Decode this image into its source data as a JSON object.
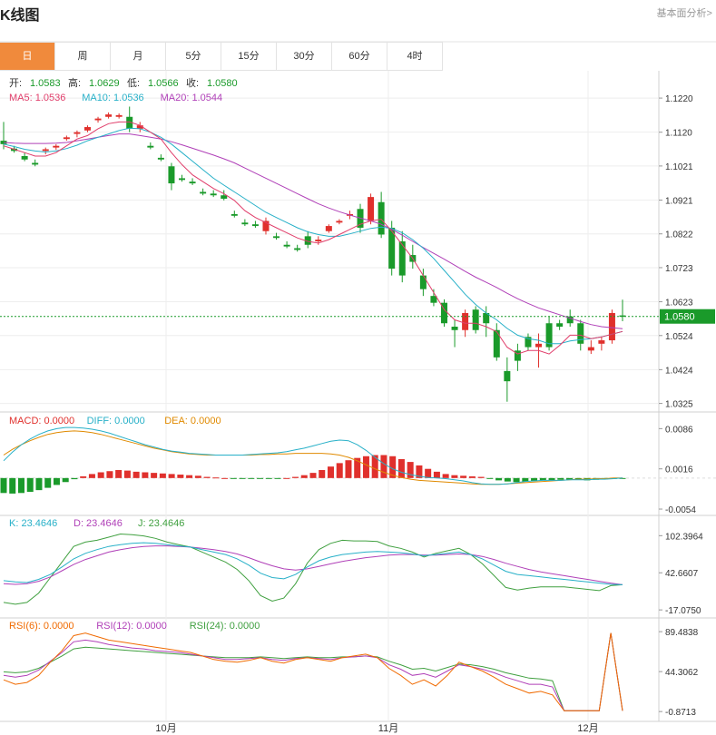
{
  "header": {
    "title": "K线图",
    "link_label": "基本面分析>"
  },
  "tabs": [
    {
      "label": "日",
      "active": true
    },
    {
      "label": "周"
    },
    {
      "label": "月"
    },
    {
      "label": "5分"
    },
    {
      "label": "15分"
    },
    {
      "label": "30分"
    },
    {
      "label": "60分"
    },
    {
      "label": "4时"
    }
  ],
  "ohlc_info": [
    {
      "label": "开:",
      "value": "1.0583"
    },
    {
      "label": "高:",
      "value": "1.0629"
    },
    {
      "label": "低:",
      "value": "1.0566"
    },
    {
      "label": "收:",
      "value": "1.0580"
    }
  ],
  "ma_info": [
    {
      "label": "MA5: 1.0536",
      "color": "#e03d6a"
    },
    {
      "label": "MA10: 1.0536",
      "color": "#27b0c8"
    },
    {
      "label": "MA20: 1.0544",
      "color": "#b040b8"
    }
  ],
  "macd_info": [
    {
      "label": "MACD: 0.0000",
      "color": "#e0302c"
    },
    {
      "label": "DIFF: 0.0000",
      "color": "#27b0c8"
    },
    {
      "label": "DEA: 0.0000",
      "color": "#e08a00"
    }
  ],
  "kdj_info": [
    {
      "label": "K: 23.4646",
      "color": "#27b0c8"
    },
    {
      "label": "D: 23.4646",
      "color": "#b040b8"
    },
    {
      "label": "J: 23.4646",
      "color": "#40a040"
    }
  ],
  "rsi_info": [
    {
      "label": "RSI(6): 0.0000",
      "color": "#f06a00"
    },
    {
      "label": "RSI(12): 0.0000",
      "color": "#b040b8"
    },
    {
      "label": "RSI(24): 0.0000",
      "color": "#40a040"
    }
  ],
  "colors": {
    "up": "#e0302c",
    "down": "#1a9a2a",
    "grid": "#eeeeee",
    "accent": "#f08a3c"
  },
  "chart_data": [
    {
      "type": "candlestick",
      "title": "K线图",
      "x_labels": [
        "10月",
        "11月",
        "12月"
      ],
      "y_ticks": [
        1.122,
        1.112,
        1.1021,
        1.0921,
        1.0822,
        1.0723,
        1.0623,
        1.0524,
        1.0424,
        1.0325
      ],
      "ylim": [
        1.03,
        1.13
      ],
      "last_price_label": "1.0580",
      "last_price": 1.058,
      "candles": [
        [
          1.1095,
          1.115,
          1.107,
          1.1085
        ],
        [
          1.1072,
          1.108,
          1.106,
          1.1065
        ],
        [
          1.105,
          1.106,
          1.1035,
          1.104
        ],
        [
          1.103,
          1.104,
          1.102,
          1.1025
        ],
        [
          1.1065,
          1.1075,
          1.1055,
          1.107
        ],
        [
          1.1075,
          1.1085,
          1.1068,
          1.108
        ],
        [
          1.11,
          1.111,
          1.1095,
          1.1105
        ],
        [
          1.1115,
          1.1125,
          1.1105,
          1.112
        ],
        [
          1.1125,
          1.114,
          1.112,
          1.1135
        ],
        [
          1.1155,
          1.1165,
          1.1148,
          1.116
        ],
        [
          1.1165,
          1.1178,
          1.116,
          1.1172
        ],
        [
          1.1165,
          1.1175,
          1.116,
          1.117
        ],
        [
          1.1165,
          1.1195,
          1.112,
          1.113
        ],
        [
          1.113,
          1.115,
          1.112,
          1.114
        ],
        [
          1.108,
          1.109,
          1.107,
          1.1075
        ],
        [
          1.1045,
          1.1055,
          1.1035,
          1.104
        ],
        [
          1.102,
          1.103,
          1.095,
          1.097
        ],
        [
          1.0985,
          1.0995,
          1.0975,
          1.098
        ],
        [
          1.0975,
          1.0985,
          1.0965,
          1.097
        ],
        [
          1.0945,
          1.0955,
          1.0935,
          1.094
        ],
        [
          1.094,
          1.095,
          1.093,
          1.0935
        ],
        [
          1.0935,
          1.095,
          1.092,
          1.0925
        ],
        [
          1.088,
          1.089,
          1.087,
          1.0875
        ],
        [
          1.0855,
          1.0865,
          1.0845,
          1.085
        ],
        [
          1.085,
          1.086,
          1.084,
          1.0845
        ],
        [
          1.083,
          1.087,
          1.082,
          1.086
        ],
        [
          1.0815,
          1.0825,
          1.0805,
          1.081
        ],
        [
          1.079,
          1.08,
          1.078,
          1.0785
        ],
        [
          1.078,
          1.079,
          1.077,
          1.0775
        ],
        [
          1.0815,
          1.083,
          1.078,
          1.079
        ],
        [
          1.08,
          1.0815,
          1.079,
          1.0805
        ],
        [
          1.083,
          1.085,
          1.0825,
          1.0845
        ],
        [
          1.0855,
          1.0865,
          1.085,
          1.086
        ],
        [
          1.0875,
          1.089,
          1.0865,
          1.088
        ],
        [
          1.0895,
          1.091,
          1.0825,
          1.084
        ],
        [
          1.086,
          1.094,
          1.085,
          1.093
        ],
        [
          1.0915,
          1.0945,
          1.081,
          1.082
        ],
        [
          1.084,
          1.086,
          1.07,
          1.072
        ],
        [
          1.08,
          1.083,
          1.068,
          1.07
        ],
        [
          1.076,
          1.079,
          1.072,
          1.074
        ],
        [
          1.07,
          1.072,
          1.064,
          1.066
        ],
        [
          1.064,
          1.066,
          1.061,
          1.062
        ],
        [
          1.062,
          1.063,
          1.055,
          1.056
        ],
        [
          1.055,
          1.057,
          1.049,
          1.054
        ],
        [
          1.054,
          1.06,
          1.052,
          1.059
        ],
        [
          1.06,
          1.061,
          1.053,
          1.054
        ],
        [
          1.059,
          1.061,
          1.052,
          1.056
        ],
        [
          1.054,
          1.056,
          1.045,
          1.046
        ],
        [
          1.042,
          1.046,
          1.033,
          1.039
        ],
        [
          1.048,
          1.05,
          1.042,
          1.045
        ],
        [
          1.052,
          1.053,
          1.048,
          1.049
        ],
        [
          1.049,
          1.053,
          1.043,
          1.05
        ],
        [
          1.056,
          1.058,
          1.048,
          1.049
        ],
        [
          1.056,
          1.057,
          1.054,
          1.055
        ],
        [
          1.058,
          1.06,
          1.055,
          1.056
        ],
        [
          1.056,
          1.057,
          1.048,
          1.05
        ],
        [
          1.048,
          1.051,
          1.047,
          1.049
        ],
        [
          1.05,
          1.052,
          1.048,
          1.051
        ],
        [
          1.051,
          1.06,
          1.05,
          1.059
        ],
        [
          1.0583,
          1.0629,
          1.0566,
          1.058
        ]
      ],
      "ma5": [
        1.108,
        1.107,
        1.106,
        1.105,
        1.105,
        1.106,
        1.108,
        1.11,
        1.111,
        1.113,
        1.1145,
        1.115,
        1.115,
        1.114,
        1.112,
        1.11,
        1.106,
        1.1025,
        1.0995,
        1.0975,
        1.0955,
        1.094,
        1.092,
        1.089,
        1.087,
        1.0855,
        1.084,
        1.0825,
        1.081,
        1.08,
        1.0795,
        1.0805,
        1.082,
        1.0835,
        1.085,
        1.086,
        1.0865,
        1.083,
        1.079,
        1.075,
        1.07,
        1.065,
        1.06,
        1.057,
        1.056,
        1.056,
        1.055,
        1.0535,
        1.049,
        1.047,
        1.048,
        1.048,
        1.047,
        1.0495,
        1.0525,
        1.0525,
        1.0515,
        1.052,
        1.0528,
        1.0536
      ],
      "ma10": [
        1.1085,
        1.1078,
        1.107,
        1.1065,
        1.1062,
        1.1065,
        1.1072,
        1.1082,
        1.1095,
        1.1105,
        1.1115,
        1.1125,
        1.1132,
        1.113,
        1.112,
        1.1105,
        1.1085,
        1.106,
        1.1035,
        1.101,
        1.0985,
        1.0965,
        1.0945,
        1.0925,
        1.0905,
        1.0885,
        1.087,
        1.0855,
        1.084,
        1.0828,
        1.082,
        1.0815,
        1.0815,
        1.0822,
        1.083,
        1.0838,
        1.0842,
        1.0838,
        1.0825,
        1.0805,
        1.078,
        1.075,
        1.0715,
        1.068,
        1.0645,
        1.0615,
        1.059,
        1.057,
        1.0545,
        1.0525,
        1.0515,
        1.051,
        1.05,
        1.05,
        1.0508,
        1.0512,
        1.0515,
        1.052,
        1.0528,
        1.0536
      ],
      "ma20": [
        1.109,
        1.1088,
        1.1087,
        1.1087,
        1.1087,
        1.1088,
        1.109,
        1.1095,
        1.11,
        1.1105,
        1.111,
        1.1115,
        1.1115,
        1.111,
        1.1105,
        1.11,
        1.1092,
        1.1083,
        1.1073,
        1.1063,
        1.1053,
        1.1042,
        1.103,
        1.1015,
        1.1,
        1.0985,
        1.097,
        1.0955,
        1.094,
        1.0925,
        1.091,
        1.0898,
        1.0887,
        1.0877,
        1.0868,
        1.086,
        1.085,
        1.0835,
        1.0818,
        1.08,
        1.0782,
        1.0765,
        1.0748,
        1.073,
        1.0712,
        1.0695,
        1.068,
        1.0665,
        1.0648,
        1.0632,
        1.0618,
        1.0605,
        1.0595,
        1.0585,
        1.0575,
        1.0565,
        1.0556,
        1.055,
        1.0547,
        1.0544
      ]
    },
    {
      "type": "macd",
      "y_ticks": [
        0.0086,
        0.0016,
        -0.0054
      ],
      "ylim": [
        -0.0065,
        0.0115
      ],
      "hist": [
        -0.0026,
        -0.0027,
        -0.0026,
        -0.0024,
        -0.0021,
        -0.0017,
        -0.0012,
        -0.0007,
        -0.0002,
        0.0003,
        0.0007,
        0.001,
        0.0012,
        0.0014,
        0.0013,
        0.0011,
        0.001,
        0.0009,
        0.0008,
        0.0007,
        0.0006,
        0.0005,
        0.0004,
        0.0002,
        0.0001,
        0.0,
        -0.0001,
        -0.0001,
        -0.0001,
        -0.0001,
        -0.0001,
        -0.0001,
        0.0,
        0.0002,
        0.0005,
        0.0009,
        0.0014,
        0.002,
        0.0026,
        0.0031,
        0.0035,
        0.0038,
        0.004,
        0.004,
        0.0038,
        0.0033,
        0.0028,
        0.0022,
        0.0016,
        0.0011,
        0.0007,
        0.0005,
        0.0004,
        0.0003,
        0.0002,
        -0.0001,
        -0.0004,
        -0.0006,
        -0.0007,
        -0.0006,
        -0.0005,
        -0.0004,
        -0.0004,
        -0.0003,
        -0.0003,
        -0.0002,
        -0.0004,
        -0.0003,
        -0.0002,
        -0.0001,
        -0.0001
      ],
      "diff": [
        0.003,
        0.0045,
        0.0058,
        0.0068,
        0.0076,
        0.0082,
        0.0086,
        0.0088,
        0.0088,
        0.0087,
        0.0085,
        0.0082,
        0.0078,
        0.0073,
        0.0068,
        0.0063,
        0.0058,
        0.0054,
        0.005,
        0.0047,
        0.0045,
        0.0043,
        0.0042,
        0.0041,
        0.004,
        0.004,
        0.004,
        0.004,
        0.0041,
        0.0042,
        0.0043,
        0.0044,
        0.0046,
        0.0049,
        0.0052,
        0.0056,
        0.006,
        0.0064,
        0.0066,
        0.0065,
        0.0058,
        0.0048,
        0.0036,
        0.0025,
        0.0016,
        0.001,
        0.0006,
        0.0003,
        0.0001,
        0.0,
        -0.0001,
        -0.0003,
        -0.0005,
        -0.0008,
        -0.001,
        -0.0011,
        -0.0011,
        -0.001,
        -0.0008,
        -0.0006,
        -0.0005,
        -0.0004,
        -0.0004,
        -0.0004,
        -0.0003,
        -0.0003,
        -0.0003,
        -0.0002,
        -0.0002,
        -0.0001,
        0.0
      ],
      "dea": [
        0.004,
        0.005,
        0.0058,
        0.0065,
        0.0071,
        0.0076,
        0.0079,
        0.0081,
        0.0082,
        0.0081,
        0.0079,
        0.0076,
        0.0072,
        0.0068,
        0.0064,
        0.006,
        0.0056,
        0.0052,
        0.0049,
        0.0046,
        0.0044,
        0.0042,
        0.0041,
        0.004,
        0.004,
        0.004,
        0.004,
        0.004,
        0.004,
        0.0041,
        0.0041,
        0.0042,
        0.0042,
        0.0043,
        0.0043,
        0.0043,
        0.0043,
        0.0042,
        0.004,
        0.0036,
        0.003,
        0.0023,
        0.0016,
        0.001,
        0.0005,
        0.0001,
        -0.0002,
        -0.0004,
        -0.0005,
        -0.0006,
        -0.0007,
        -0.0008,
        -0.0009,
        -0.001,
        -0.0011,
        -0.0011,
        -0.0011,
        -0.001,
        -0.0009,
        -0.0008,
        -0.0007,
        -0.0006,
        -0.0005,
        -0.0004,
        -0.0003,
        -0.0002,
        -0.0002,
        -0.0001,
        -0.0001,
        0.0,
        0.0
      ]
    },
    {
      "type": "kdj",
      "y_ticks": [
        102.3964,
        42.6607,
        -17.075
      ],
      "ylim": [
        -30,
        135
      ],
      "k": [
        30,
        28,
        27,
        32,
        40,
        52,
        65,
        74,
        80,
        85,
        88,
        90,
        91,
        90,
        88,
        86,
        84,
        80,
        76,
        72,
        65,
        55,
        42,
        35,
        33,
        40,
        52,
        62,
        68,
        72,
        74,
        76,
        77,
        76,
        75,
        73,
        70,
        72,
        74,
        76,
        72,
        65,
        55,
        45,
        40,
        38,
        36,
        34,
        32,
        30,
        28,
        26,
        24,
        23.5
      ],
      "d": [
        25,
        24,
        25,
        29,
        36,
        46,
        56,
        64,
        70,
        76,
        80,
        83,
        85,
        86,
        86,
        85,
        84,
        82,
        80,
        77,
        73,
        67,
        60,
        54,
        49,
        47,
        49,
        53,
        57,
        61,
        64,
        67,
        69,
        71,
        72,
        72,
        71,
        71,
        72,
        73,
        72,
        69,
        64,
        58,
        53,
        48,
        44,
        41,
        38,
        35,
        32,
        29,
        26,
        23.5
      ],
      "j": [
        -5,
        -8,
        -5,
        10,
        35,
        60,
        85,
        92,
        95,
        100,
        105,
        104,
        102,
        98,
        92,
        88,
        84,
        76,
        68,
        60,
        48,
        30,
        6,
        -3,
        2,
        25,
        58,
        80,
        90,
        95,
        94,
        94,
        93,
        86,
        82,
        76,
        68,
        74,
        78,
        82,
        72,
        57,
        38,
        19,
        15,
        18,
        20,
        20,
        20,
        18,
        16,
        14,
        22,
        23.5
      ]
    },
    {
      "type": "rsi",
      "y_ticks": [
        89.4838,
        44.3062,
        -0.8713
      ],
      "ylim": [
        -12,
        105
      ],
      "rsi6": [
        35,
        30,
        32,
        40,
        55,
        68,
        85,
        88,
        84,
        80,
        78,
        76,
        74,
        72,
        70,
        68,
        66,
        62,
        58,
        56,
        55,
        57,
        60,
        56,
        54,
        58,
        60,
        58,
        56,
        60,
        62,
        64,
        60,
        48,
        40,
        30,
        35,
        28,
        40,
        55,
        50,
        45,
        38,
        30,
        25,
        20,
        22,
        18,
        0,
        0,
        0,
        0,
        88,
        0
      ],
      "rsi12": [
        40,
        38,
        40,
        46,
        56,
        66,
        78,
        80,
        78,
        75,
        73,
        71,
        70,
        68,
        67,
        66,
        64,
        62,
        60,
        58,
        58,
        59,
        60,
        58,
        57,
        59,
        60,
        59,
        58,
        60,
        61,
        62,
        60,
        52,
        47,
        40,
        42,
        38,
        45,
        52,
        50,
        47,
        43,
        38,
        34,
        30,
        30,
        27,
        0,
        0,
        0,
        0,
        88,
        0
      ],
      "rsi24": [
        44,
        43,
        44,
        48,
        55,
        62,
        70,
        72,
        71,
        70,
        69,
        68,
        67,
        66,
        65,
        64,
        63,
        62,
        61,
        60,
        60,
        60,
        61,
        60,
        59,
        60,
        61,
        60,
        60,
        61,
        61,
        62,
        61,
        56,
        52,
        47,
        48,
        45,
        49,
        53,
        52,
        50,
        47,
        43,
        40,
        37,
        36,
        34,
        0,
        0,
        0,
        0,
        88,
        0
      ]
    }
  ]
}
